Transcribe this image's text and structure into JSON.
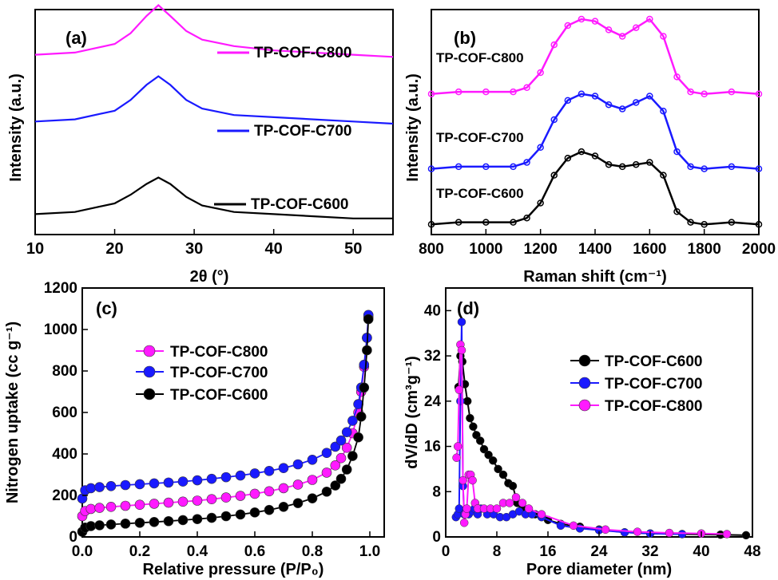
{
  "panels": {
    "a": {
      "label": "(a)",
      "xlabel": "2θ (°)",
      "ylabel": "Intensity (a.u.)",
      "xticks": [
        "10",
        "20",
        "30",
        "40",
        "50"
      ],
      "legend": [
        "TP-COF-C800",
        "TP-COF-C700",
        "TP-COF-C600"
      ]
    },
    "b": {
      "label": "(b)",
      "xlabel": "Raman shift (cm⁻¹)",
      "ylabel": "Intensity (a.u.)",
      "xticks": [
        "800",
        "1000",
        "1200",
        "1400",
        "1600",
        "1800",
        "2000"
      ],
      "legend": [
        "TP-COF-C800",
        "TP-COF-C700",
        "TP-COF-C600"
      ]
    },
    "c": {
      "label": "(c)",
      "xlabel": "Relative pressure (P/P₀)",
      "ylabel": "Nitrogen uptake (cc g⁻¹)",
      "xticks": [
        "0.0",
        "0.2",
        "0.4",
        "0.6",
        "0.8",
        "1.0"
      ],
      "yticks": [
        "0",
        "200",
        "400",
        "600",
        "800",
        "1000",
        "1200"
      ],
      "legend": [
        "TP-COF-C800",
        "TP-COF-C700",
        "TP-COF-C600"
      ]
    },
    "d": {
      "label": "(d)",
      "xlabel": "Pore diameter (nm)",
      "ylabel": "dV/dD (cm³g⁻¹)",
      "xticks": [
        "0",
        "8",
        "16",
        "24",
        "32",
        "40",
        "48"
      ],
      "yticks": [
        "0",
        "8",
        "16",
        "24",
        "32",
        "40"
      ],
      "legend": [
        "TP-COF-C600",
        "TP-COF-C700",
        "TP-COF-C800"
      ]
    }
  },
  "colors": {
    "C600": "#000000",
    "C700": "#1a1aff",
    "C800": "#ff1aff"
  },
  "chart_data": [
    {
      "type": "line",
      "title": "",
      "xlabel": "2θ (°)",
      "ylabel": "Intensity (a.u.)",
      "xlim": [
        10,
        55
      ],
      "grid": false,
      "legend": "right",
      "series": [
        {
          "name": "TP-COF-C800",
          "x": [
            10,
            15,
            20,
            22,
            24,
            25.5,
            27,
            29,
            31,
            35,
            40,
            45,
            50,
            55
          ],
          "y": [
            0.82,
            0.83,
            0.87,
            0.92,
            1.0,
            1.05,
            1.0,
            0.93,
            0.89,
            0.86,
            0.84,
            0.83,
            0.82,
            0.81
          ]
        },
        {
          "name": "TP-COF-C700",
          "x": [
            10,
            15,
            20,
            22,
            24,
            25.5,
            27,
            29,
            31,
            35,
            40,
            45,
            50,
            55
          ],
          "y": [
            0.51,
            0.52,
            0.56,
            0.61,
            0.68,
            0.72,
            0.68,
            0.61,
            0.57,
            0.54,
            0.53,
            0.52,
            0.51,
            0.5
          ]
        },
        {
          "name": "TP-COF-C600",
          "x": [
            10,
            15,
            20,
            22,
            24,
            25.5,
            27,
            29,
            31,
            35,
            40,
            45,
            50,
            55
          ],
          "y": [
            0.08,
            0.09,
            0.13,
            0.17,
            0.22,
            0.25,
            0.22,
            0.16,
            0.12,
            0.09,
            0.08,
            0.07,
            0.06,
            0.06
          ]
        }
      ]
    },
    {
      "type": "line",
      "title": "",
      "xlabel": "Raman shift (cm⁻¹)",
      "ylabel": "Intensity (a.u.)",
      "xlim": [
        800,
        2000
      ],
      "grid": false,
      "legend": "left",
      "series": [
        {
          "name": "TP-COF-C800",
          "x": [
            800,
            900,
            1000,
            1100,
            1150,
            1200,
            1250,
            1300,
            1350,
            1400,
            1450,
            1500,
            1550,
            1600,
            1650,
            1700,
            1750,
            1800,
            1900,
            2000
          ],
          "y": [
            0.65,
            0.66,
            0.66,
            0.66,
            0.68,
            0.75,
            0.88,
            0.97,
            1.0,
            0.99,
            0.95,
            0.92,
            0.96,
            1.0,
            0.92,
            0.73,
            0.66,
            0.65,
            0.66,
            0.65
          ]
        },
        {
          "name": "TP-COF-C700",
          "x": [
            800,
            900,
            1000,
            1100,
            1150,
            1200,
            1250,
            1300,
            1350,
            1400,
            1450,
            1500,
            1550,
            1600,
            1650,
            1700,
            1750,
            1800,
            1900,
            2000
          ],
          "y": [
            0.3,
            0.31,
            0.31,
            0.31,
            0.33,
            0.4,
            0.53,
            0.62,
            0.65,
            0.64,
            0.6,
            0.58,
            0.61,
            0.64,
            0.57,
            0.38,
            0.31,
            0.3,
            0.31,
            0.3
          ]
        },
        {
          "name": "TP-COF-C600",
          "x": [
            800,
            900,
            1000,
            1100,
            1150,
            1200,
            1250,
            1300,
            1350,
            1400,
            1450,
            1500,
            1550,
            1600,
            1650,
            1700,
            1750,
            1800,
            1900,
            2000
          ],
          "y": [
            0.04,
            0.05,
            0.05,
            0.05,
            0.07,
            0.14,
            0.27,
            0.35,
            0.38,
            0.36,
            0.32,
            0.31,
            0.32,
            0.33,
            0.27,
            0.1,
            0.05,
            0.04,
            0.05,
            0.04
          ]
        }
      ]
    },
    {
      "type": "scatter",
      "title": "",
      "xlabel": "Relative pressure (P/P₀)",
      "ylabel": "Nitrogen uptake (cc g⁻¹)",
      "xlim": [
        0,
        1.05
      ],
      "ylim": [
        0,
        1200
      ],
      "grid": false,
      "legend": "left",
      "series": [
        {
          "name": "TP-COF-C800",
          "x": [
            0.0,
            0.01,
            0.03,
            0.06,
            0.1,
            0.15,
            0.2,
            0.25,
            0.3,
            0.35,
            0.4,
            0.45,
            0.5,
            0.55,
            0.6,
            0.65,
            0.7,
            0.75,
            0.8,
            0.85,
            0.88,
            0.9,
            0.92,
            0.94,
            0.96,
            0.97,
            0.98,
            0.99,
            0.995
          ],
          "y": [
            100,
            125,
            135,
            140,
            145,
            150,
            155,
            160,
            165,
            170,
            175,
            182,
            190,
            198,
            208,
            220,
            235,
            252,
            275,
            310,
            345,
            380,
            430,
            500,
            600,
            700,
            820,
            960,
            1060
          ]
        },
        {
          "name": "TP-COF-C700",
          "x": [
            0.0,
            0.01,
            0.03,
            0.06,
            0.1,
            0.15,
            0.2,
            0.25,
            0.3,
            0.35,
            0.4,
            0.45,
            0.5,
            0.55,
            0.6,
            0.65,
            0.7,
            0.75,
            0.8,
            0.85,
            0.88,
            0.9,
            0.92,
            0.94,
            0.96,
            0.97,
            0.98,
            0.99,
            0.995
          ],
          "y": [
            185,
            225,
            235,
            240,
            245,
            250,
            254,
            258,
            262,
            267,
            273,
            280,
            288,
            296,
            306,
            318,
            332,
            350,
            372,
            405,
            435,
            465,
            505,
            560,
            640,
            720,
            830,
            960,
            1070
          ]
        },
        {
          "name": "TP-COF-C600",
          "x": [
            0.0,
            0.01,
            0.03,
            0.06,
            0.1,
            0.15,
            0.2,
            0.25,
            0.3,
            0.35,
            0.4,
            0.45,
            0.5,
            0.55,
            0.6,
            0.65,
            0.7,
            0.75,
            0.8,
            0.85,
            0.88,
            0.9,
            0.92,
            0.94,
            0.96,
            0.97,
            0.98,
            0.99,
            0.995
          ],
          "y": [
            25,
            45,
            52,
            56,
            60,
            64,
            68,
            72,
            76,
            81,
            86,
            92,
            100,
            108,
            118,
            130,
            145,
            163,
            186,
            218,
            248,
            280,
            325,
            390,
            480,
            580,
            720,
            900,
            1050
          ]
        }
      ]
    },
    {
      "type": "line",
      "title": "",
      "xlabel": "Pore diameter (nm)",
      "ylabel": "dV/dD (cm³g⁻¹)",
      "xlim": [
        0,
        48
      ],
      "ylim": [
        0,
        44
      ],
      "grid": false,
      "legend": "right",
      "series": [
        {
          "name": "TP-COF-C600",
          "x": [
            2.0,
            2.3,
            2.6,
            3.0,
            3.4,
            3.8,
            4.3,
            4.8,
            5.4,
            6.0,
            6.7,
            7.4,
            8.2,
            9.0,
            9.8,
            10.5,
            11.2,
            12,
            14,
            16,
            18,
            21,
            24,
            28,
            32,
            37,
            43,
            47
          ],
          "y": [
            26.5,
            32,
            31,
            27,
            24,
            21,
            19.5,
            18,
            17,
            15.5,
            14.5,
            13.5,
            12,
            11,
            9.5,
            9,
            6,
            5,
            4,
            3,
            2.3,
            1.8,
            1.3,
            0.8,
            0.6,
            0.5,
            0.4,
            0.3
          ]
        },
        {
          "name": "TP-COF-C700",
          "x": [
            1.6,
            1.9,
            2.1,
            2.3,
            2.5,
            2.7,
            2.9,
            3.2,
            3.6,
            4.0,
            4.5,
            5.0,
            5.5,
            6.5,
            7.5,
            8.5,
            9.5,
            10.5,
            11.5,
            12.5,
            13.5,
            15,
            18,
            21,
            24,
            28,
            32,
            37
          ],
          "y": [
            3.5,
            4,
            5,
            24,
            38,
            9,
            4,
            4.5,
            4,
            4.5,
            5,
            4,
            5,
            4,
            4,
            3.5,
            3.5,
            4,
            4.5,
            4,
            4,
            3.5,
            2,
            1.5,
            1.2,
            0.8,
            0.6,
            0.5
          ]
        },
        {
          "name": "TP-COF-C800",
          "x": [
            1.7,
            1.9,
            2.1,
            2.3,
            2.5,
            2.7,
            2.9,
            3.1,
            3.3,
            3.6,
            3.9,
            4.2,
            4.6,
            5.0,
            6.0,
            7.0,
            8.0,
            9.0,
            10.0,
            11.0,
            12.0,
            13.0,
            15,
            20,
            25,
            30,
            35,
            40,
            44
          ],
          "y": [
            14,
            16,
            26,
            34,
            33,
            10,
            2.5,
            4,
            5,
            11,
            11,
            10,
            6,
            5,
            5,
            5,
            5,
            6,
            6,
            7,
            6,
            5,
            4,
            2,
            1.3,
            0.9,
            0.7,
            0.6,
            0.5
          ]
        }
      ]
    }
  ]
}
